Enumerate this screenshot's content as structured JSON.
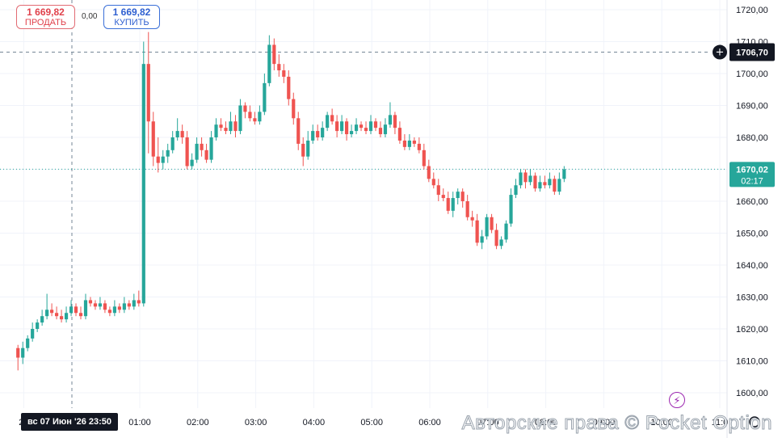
{
  "ticket": {
    "sell_value": "1 669,82",
    "sell_label": "ПРОДАТЬ",
    "spread": "0,00",
    "buy_value": "1 669,82",
    "buy_label": "КУПИТЬ"
  },
  "crosshair": {
    "price_label": "1706,70",
    "date_label": "вс 07 Июн '26   23:50"
  },
  "current": {
    "price_label": "1670,02",
    "countdown": "02:17",
    "price": 1670.02
  },
  "watermark": "Авторские права © Pocket Option",
  "colors": {
    "up": "#26a69a",
    "down": "#ef5350",
    "crosshair_badge": "#131722",
    "current_badge": "#26a69a"
  },
  "chart_data": {
    "type": "candlestick",
    "ylim": [
      1596,
      1723
    ],
    "y_ticks": [
      "1720,00",
      "1710,00",
      "1700,00",
      "1690,00",
      "1680,00",
      "1670,00",
      "1660,00",
      "1650,00",
      "1640,00",
      "1630,00",
      "1620,00",
      "1610,00",
      "1600,00"
    ],
    "x_ticks": [
      "23",
      "01:00",
      "02:00",
      "03:00",
      "04:00",
      "05:00",
      "06:00",
      "07:00",
      "08:00",
      "09:00",
      "10:00",
      "11:0"
    ],
    "x_tick_hours": [
      -1,
      1,
      2,
      3,
      4,
      5,
      6,
      7,
      8,
      9,
      10,
      11
    ],
    "start_hour": -1.1,
    "candle_minutes": 5,
    "crosshair_price": 1706.7,
    "crosshair_hour": -0.17,
    "candles": [
      [
        1614,
        1611,
        1615,
        1607
      ],
      [
        1611,
        1614,
        1616,
        1609
      ],
      [
        1614,
        1617,
        1618,
        1613
      ],
      [
        1617,
        1620,
        1622,
        1616
      ],
      [
        1620,
        1622,
        1623,
        1619
      ],
      [
        1622,
        1624,
        1626,
        1621
      ],
      [
        1624,
        1626,
        1631,
        1623
      ],
      [
        1626,
        1625,
        1628,
        1624
      ],
      [
        1625,
        1624,
        1627,
        1623
      ],
      [
        1624,
        1623,
        1626,
        1622
      ],
      [
        1623,
        1625,
        1627,
        1622
      ],
      [
        1625,
        1627,
        1629,
        1624
      ],
      [
        1627,
        1625,
        1628,
        1624
      ],
      [
        1625,
        1624,
        1627,
        1623
      ],
      [
        1624,
        1629,
        1631,
        1623
      ],
      [
        1629,
        1628,
        1630,
        1627
      ],
      [
        1628,
        1627,
        1629,
        1626
      ],
      [
        1627,
        1628,
        1630,
        1626
      ],
      [
        1628,
        1626,
        1629,
        1625
      ],
      [
        1626,
        1625,
        1627,
        1624
      ],
      [
        1625,
        1627,
        1629,
        1624
      ],
      [
        1627,
        1626,
        1628,
        1625
      ],
      [
        1626,
        1628,
        1630,
        1625
      ],
      [
        1628,
        1627,
        1629,
        1626
      ],
      [
        1627,
        1629,
        1631,
        1626
      ],
      [
        1629,
        1628,
        1632,
        1627
      ],
      [
        1628,
        1703,
        1710,
        1627
      ],
      [
        1703,
        1685,
        1713,
        1675
      ],
      [
        1685,
        1674,
        1688,
        1671
      ],
      [
        1674,
        1672,
        1680,
        1669
      ],
      [
        1672,
        1674,
        1676,
        1670
      ],
      [
        1674,
        1676,
        1678,
        1672
      ],
      [
        1676,
        1680,
        1682,
        1675
      ],
      [
        1680,
        1682,
        1686,
        1679
      ],
      [
        1682,
        1680,
        1684,
        1678
      ],
      [
        1680,
        1671,
        1682,
        1670
      ],
      [
        1671,
        1673,
        1675,
        1670
      ],
      [
        1673,
        1678,
        1680,
        1672
      ],
      [
        1678,
        1676,
        1680,
        1674
      ],
      [
        1676,
        1673,
        1678,
        1672
      ],
      [
        1673,
        1680,
        1682,
        1672
      ],
      [
        1680,
        1684,
        1686,
        1679
      ],
      [
        1684,
        1683,
        1686,
        1682
      ],
      [
        1683,
        1682,
        1685,
        1681
      ],
      [
        1682,
        1685,
        1688,
        1681
      ],
      [
        1685,
        1682,
        1687,
        1680
      ],
      [
        1682,
        1690,
        1692,
        1681
      ],
      [
        1690,
        1688,
        1691,
        1686
      ],
      [
        1688,
        1686,
        1690,
        1685
      ],
      [
        1686,
        1685,
        1688,
        1684
      ],
      [
        1685,
        1688,
        1690,
        1684
      ],
      [
        1688,
        1697,
        1700,
        1687
      ],
      [
        1697,
        1709,
        1712,
        1696
      ],
      [
        1709,
        1703,
        1711,
        1701
      ],
      [
        1703,
        1701,
        1706,
        1699
      ],
      [
        1701,
        1699,
        1703,
        1697
      ],
      [
        1699,
        1692,
        1701,
        1690
      ],
      [
        1692,
        1686,
        1694,
        1684
      ],
      [
        1686,
        1678,
        1688,
        1676
      ],
      [
        1678,
        1674,
        1680,
        1671
      ],
      [
        1674,
        1679,
        1682,
        1673
      ],
      [
        1679,
        1682,
        1684,
        1678
      ],
      [
        1682,
        1680,
        1684,
        1679
      ],
      [
        1680,
        1683,
        1685,
        1679
      ],
      [
        1683,
        1687,
        1688,
        1682
      ],
      [
        1687,
        1685,
        1689,
        1684
      ],
      [
        1685,
        1682,
        1687,
        1680
      ],
      [
        1682,
        1685,
        1687,
        1681
      ],
      [
        1685,
        1681,
        1686,
        1679
      ],
      [
        1681,
        1682,
        1684,
        1680
      ],
      [
        1682,
        1684,
        1686,
        1681
      ],
      [
        1684,
        1683,
        1685,
        1682
      ],
      [
        1683,
        1682,
        1685,
        1681
      ],
      [
        1682,
        1685,
        1687,
        1681
      ],
      [
        1685,
        1683,
        1686,
        1682
      ],
      [
        1683,
        1681,
        1685,
        1680
      ],
      [
        1681,
        1684,
        1686,
        1680
      ],
      [
        1684,
        1687,
        1691,
        1683
      ],
      [
        1687,
        1683,
        1688,
        1681
      ],
      [
        1683,
        1679,
        1685,
        1678
      ],
      [
        1679,
        1677,
        1681,
        1676
      ],
      [
        1677,
        1679,
        1681,
        1676
      ],
      [
        1679,
        1678,
        1680,
        1677
      ],
      [
        1678,
        1676,
        1680,
        1675
      ],
      [
        1676,
        1671,
        1678,
        1670
      ],
      [
        1671,
        1667,
        1673,
        1666
      ],
      [
        1667,
        1665,
        1669,
        1664
      ],
      [
        1665,
        1662,
        1667,
        1660
      ],
      [
        1662,
        1661,
        1664,
        1660
      ],
      [
        1661,
        1657,
        1663,
        1656
      ],
      [
        1657,
        1661,
        1663,
        1655
      ],
      [
        1661,
        1663,
        1664,
        1659
      ],
      [
        1663,
        1660,
        1664,
        1658
      ],
      [
        1660,
        1655,
        1662,
        1654
      ],
      [
        1655,
        1654,
        1657,
        1652
      ],
      [
        1654,
        1647,
        1656,
        1646
      ],
      [
        1647,
        1649,
        1651,
        1645
      ],
      [
        1649,
        1655,
        1656,
        1648
      ],
      [
        1655,
        1651,
        1656,
        1650
      ],
      [
        1651,
        1646,
        1653,
        1645
      ],
      [
        1646,
        1648,
        1649,
        1645
      ],
      [
        1648,
        1653,
        1654,
        1647
      ],
      [
        1653,
        1662,
        1664,
        1652
      ],
      [
        1662,
        1665,
        1667,
        1661
      ],
      [
        1665,
        1669,
        1670,
        1664
      ],
      [
        1669,
        1666,
        1670,
        1664
      ],
      [
        1666,
        1668,
        1670,
        1665
      ],
      [
        1668,
        1664,
        1669,
        1663
      ],
      [
        1664,
        1666,
        1668,
        1663
      ],
      [
        1666,
        1665,
        1668,
        1664
      ],
      [
        1665,
        1667,
        1669,
        1664
      ],
      [
        1667,
        1663,
        1668,
        1662
      ],
      [
        1663,
        1667,
        1669,
        1662
      ],
      [
        1667,
        1670,
        1671,
        1666
      ]
    ]
  }
}
